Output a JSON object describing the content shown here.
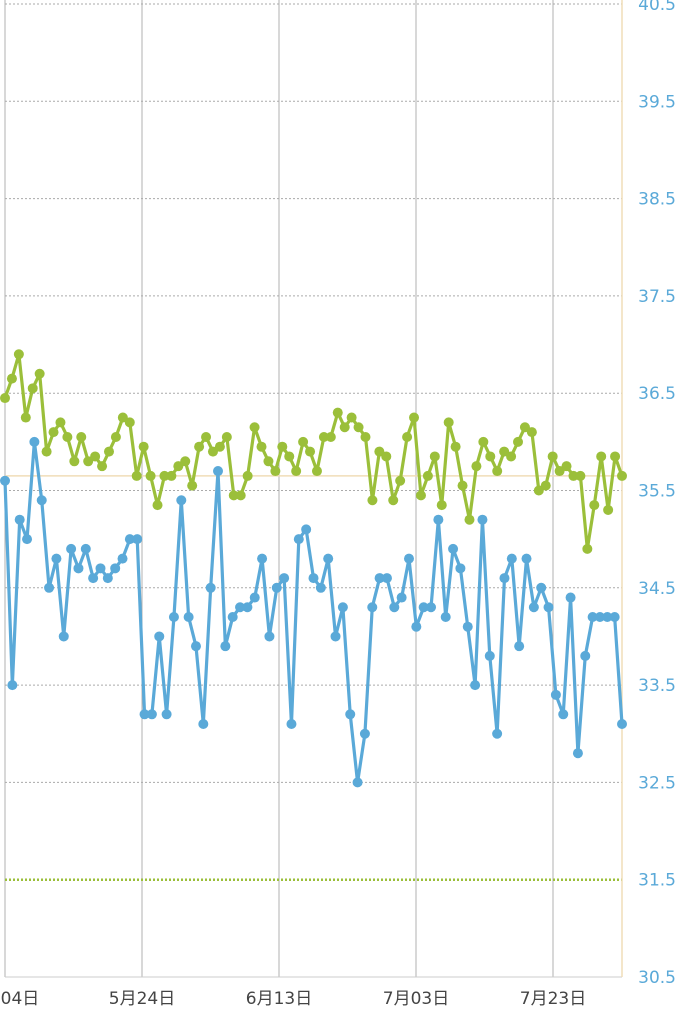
{
  "chart_data": {
    "type": "line",
    "x_tick_labels": [
      "04日",
      "5月24日",
      "6月13日",
      "7月03日",
      "7月23日"
    ],
    "y_tick_labels": [
      "40.5",
      "39.5",
      "38.5",
      "37.5",
      "36.5",
      "35.5",
      "34.5",
      "33.5",
      "32.5",
      "31.5",
      "30.5"
    ],
    "ylim": [
      30.5,
      40.5
    ],
    "y_axis_position": "right",
    "grid": true,
    "reference_lines": [
      {
        "value": 35.65,
        "color": "#f0ddb8",
        "style": "solid"
      },
      {
        "value": 31.5,
        "color": "#9bbf3a",
        "style": "dotted"
      }
    ],
    "colors": {
      "series_green": "#9bbf3a",
      "series_blue": "#5aa9d8",
      "tick_label": "#5aa9d8",
      "grid_vertical": "#b0b0b0",
      "grid_horizontal": "#aaaaaa",
      "x_tick_label": "#444444"
    },
    "series": [
      {
        "color": "#9bbf3a",
        "values": [
          36.45,
          36.65,
          36.9,
          36.25,
          36.55,
          36.7,
          35.9,
          36.1,
          36.2,
          36.05,
          35.8,
          36.05,
          35.8,
          35.85,
          35.75,
          35.9,
          36.05,
          36.25,
          36.2,
          35.65,
          35.95,
          35.65,
          35.35,
          35.65,
          35.65,
          35.75,
          35.8,
          35.55,
          35.95,
          36.05,
          35.9,
          35.95,
          36.05,
          35.45,
          35.45,
          35.65,
          36.15,
          35.95,
          35.8,
          35.7,
          35.95,
          35.85,
          35.7,
          36.0,
          35.9,
          35.7,
          36.05,
          36.05,
          36.3,
          36.15,
          36.25,
          36.15,
          36.05,
          35.4,
          35.9,
          35.85,
          35.4,
          35.6,
          36.05,
          36.25,
          35.45,
          35.65,
          35.85,
          35.35,
          36.2,
          35.95,
          35.55,
          35.2,
          35.75,
          36.0,
          35.85,
          35.7,
          35.9,
          35.85,
          36.0,
          36.15,
          36.1,
          35.5,
          35.55,
          35.85,
          35.7,
          35.75,
          35.65,
          35.65,
          34.9,
          35.35,
          35.85,
          35.3,
          35.85,
          35.65
        ]
      },
      {
        "color": "#5aa9d8",
        "values": [
          35.6,
          33.5,
          35.2,
          35.0,
          36.0,
          35.4,
          34.5,
          34.8,
          34.0,
          34.9,
          34.7,
          34.9,
          34.6,
          34.7,
          34.6,
          34.7,
          34.8,
          35.0,
          35.0,
          33.2,
          33.2,
          34.0,
          33.2,
          34.2,
          35.4,
          34.2,
          33.9,
          33.1,
          34.5,
          35.7,
          33.9,
          34.2,
          34.3,
          34.3,
          34.4,
          34.8,
          34.0,
          34.5,
          34.6,
          33.1,
          35.0,
          35.1,
          34.6,
          34.5,
          34.8,
          34.0,
          34.3,
          33.2,
          32.5,
          33.0,
          34.3,
          34.6,
          34.6,
          34.3,
          34.4,
          34.8,
          34.1,
          34.3,
          34.3,
          35.2,
          34.2,
          34.9,
          34.7,
          34.1,
          33.5,
          35.2,
          33.8,
          33.0,
          34.6,
          34.8,
          33.9,
          34.8,
          34.3,
          34.5,
          34.3,
          33.4,
          33.2,
          34.4,
          32.8,
          33.8,
          34.2,
          34.2,
          34.2,
          34.2,
          33.1
        ]
      }
    ]
  }
}
